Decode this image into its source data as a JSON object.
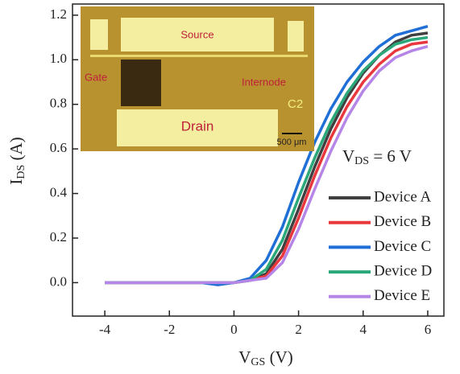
{
  "chart_data": {
    "type": "line",
    "xlabel": [
      "V",
      "GS",
      " (V)"
    ],
    "ylabel": [
      "I",
      "DS",
      " (A)"
    ],
    "annotation": [
      "V",
      "DS",
      " = 6 V"
    ],
    "x": [
      -4,
      -3,
      -2,
      -1,
      -0.5,
      0,
      0.5,
      1,
      1.5,
      2,
      2.5,
      3,
      3.5,
      4,
      4.5,
      5,
      5.5,
      6
    ],
    "series": [
      {
        "name": "Device A",
        "color": "#404040",
        "values": [
          0,
          0,
          0,
          0,
          0,
          0,
          0.01,
          0.04,
          0.15,
          0.33,
          0.52,
          0.69,
          0.83,
          0.94,
          1.02,
          1.08,
          1.11,
          1.12
        ]
      },
      {
        "name": "Device B",
        "color": "#e8383d",
        "values": [
          0,
          0,
          0,
          0,
          0,
          0,
          0.01,
          0.03,
          0.12,
          0.29,
          0.48,
          0.65,
          0.79,
          0.9,
          0.98,
          1.04,
          1.07,
          1.08
        ]
      },
      {
        "name": "Device C",
        "color": "#1f6fd6",
        "values": [
          0,
          0,
          0,
          0,
          -0.01,
          0,
          0.02,
          0.1,
          0.25,
          0.45,
          0.63,
          0.78,
          0.9,
          0.99,
          1.06,
          1.11,
          1.13,
          1.15
        ]
      },
      {
        "name": "Device D",
        "color": "#2aa87a",
        "values": [
          0,
          0,
          0,
          0,
          0,
          0,
          0.01,
          0.06,
          0.19,
          0.38,
          0.56,
          0.72,
          0.85,
          0.95,
          1.02,
          1.07,
          1.09,
          1.1
        ]
      },
      {
        "name": "Device E",
        "color": "#b585e8",
        "values": [
          0,
          0,
          0,
          0,
          0,
          0,
          0.01,
          0.02,
          0.09,
          0.24,
          0.42,
          0.59,
          0.74,
          0.86,
          0.95,
          1.01,
          1.04,
          1.06
        ]
      }
    ],
    "xlim": [
      -5,
      6.5
    ],
    "ylim": [
      -0.15,
      1.25
    ],
    "xticks": [
      -4,
      -2,
      0,
      2,
      4,
      6
    ],
    "yticks": [
      {
        "value": 0,
        "label": "0.0"
      },
      {
        "value": 0.2,
        "label": "0.2"
      },
      {
        "value": 0.4,
        "label": "0.4"
      },
      {
        "value": 0.6,
        "label": "0.6"
      },
      {
        "value": 0.8,
        "label": "0.8"
      },
      {
        "value": 1.0,
        "label": "1.0"
      },
      {
        "value": 1.2,
        "label": "1.2"
      }
    ],
    "legend": "lower right",
    "inset": {
      "source": "Source",
      "drain": "Drain",
      "gate": "Gate",
      "internode": "Internode",
      "id": "C2",
      "scale": "500 μm"
    }
  }
}
